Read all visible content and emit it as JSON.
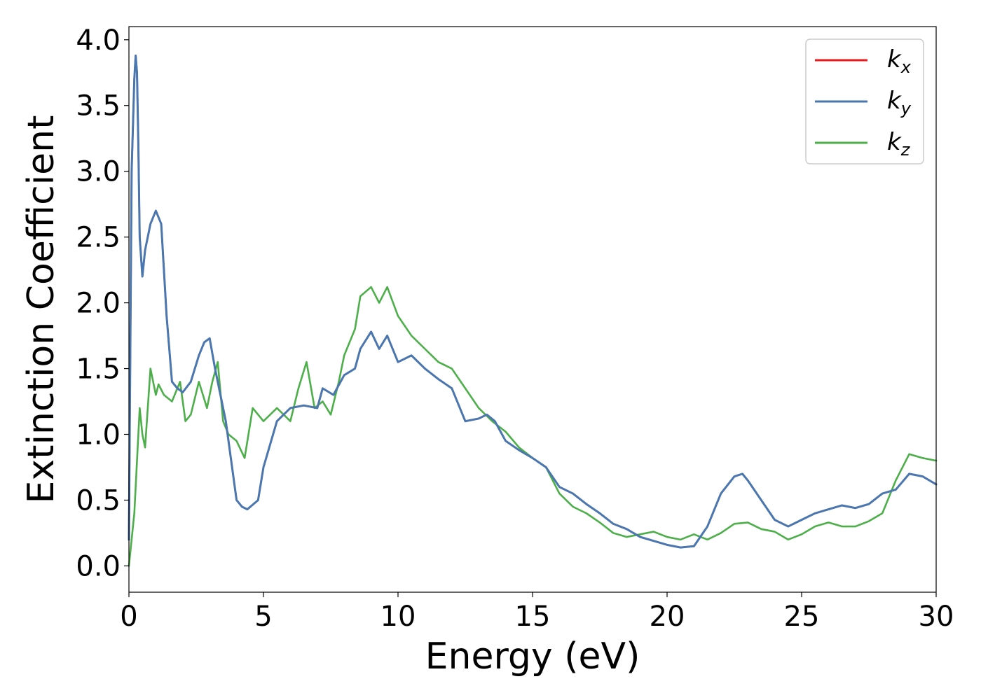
{
  "chart_data": {
    "type": "line",
    "title": "",
    "xlabel": "Energy (eV)",
    "ylabel": "Extinction Coefficient",
    "xlim": [
      0,
      30
    ],
    "ylim": [
      -0.2,
      4.1
    ],
    "xticks": [
      0,
      5,
      10,
      15,
      20,
      25,
      30
    ],
    "xtick_labels": [
      "0",
      "5",
      "10",
      "15",
      "20",
      "25",
      "30"
    ],
    "yticks": [
      0.0,
      0.5,
      1.0,
      1.5,
      2.0,
      2.5,
      3.0,
      3.5,
      4.0
    ],
    "ytick_labels": [
      "0.0",
      "0.5",
      "1.0",
      "1.5",
      "2.0",
      "2.5",
      "3.0",
      "3.5",
      "4.0"
    ],
    "grid": false,
    "legend": "top-right",
    "series": [
      {
        "name": "kx",
        "legend_base": "k",
        "legend_sub": "x",
        "color": "#e41a1c",
        "x": [
          0,
          0.1,
          0.2,
          0.25,
          0.3,
          0.35,
          0.4,
          0.5,
          0.6,
          0.8,
          1.0,
          1.2,
          1.4,
          1.6,
          1.8,
          2.0,
          2.3,
          2.6,
          2.8,
          3.0,
          3.2,
          3.6,
          3.8,
          4.0,
          4.2,
          4.4,
          4.8,
          5.0,
          5.5,
          6.0,
          6.5,
          7.0,
          7.2,
          7.6,
          8.0,
          8.4,
          8.6,
          9.0,
          9.3,
          9.6,
          10.0,
          10.5,
          11.0,
          11.5,
          12.0,
          12.5,
          13.0,
          13.3,
          13.6,
          14.0,
          14.5,
          15.0,
          15.5,
          16.0,
          16.5,
          17.0,
          17.5,
          18.0,
          18.5,
          19.0,
          19.5,
          20.0,
          20.5,
          21.0,
          21.5,
          22.0,
          22.5,
          22.8,
          23.0,
          23.5,
          24.0,
          24.5,
          25.0,
          25.5,
          26.0,
          26.5,
          27.0,
          27.5,
          28.0,
          28.5,
          29.0,
          29.5,
          30.0
        ],
        "y": [
          0.2,
          3.0,
          3.7,
          3.88,
          3.75,
          3.2,
          2.5,
          2.2,
          2.4,
          2.6,
          2.7,
          2.6,
          1.9,
          1.4,
          1.35,
          1.32,
          1.4,
          1.6,
          1.7,
          1.73,
          1.5,
          1.1,
          0.8,
          0.5,
          0.45,
          0.43,
          0.5,
          0.75,
          1.1,
          1.2,
          1.22,
          1.2,
          1.35,
          1.3,
          1.45,
          1.5,
          1.65,
          1.78,
          1.65,
          1.75,
          1.55,
          1.6,
          1.5,
          1.42,
          1.35,
          1.1,
          1.12,
          1.15,
          1.1,
          0.95,
          0.88,
          0.82,
          0.75,
          0.6,
          0.55,
          0.47,
          0.4,
          0.32,
          0.28,
          0.22,
          0.19,
          0.16,
          0.14,
          0.15,
          0.3,
          0.55,
          0.68,
          0.7,
          0.65,
          0.5,
          0.35,
          0.3,
          0.35,
          0.4,
          0.43,
          0.46,
          0.44,
          0.47,
          0.55,
          0.58,
          0.7,
          0.68,
          0.62
        ]
      },
      {
        "name": "ky",
        "legend_base": "k",
        "legend_sub": "y",
        "color": "#4a77b0",
        "x": [
          0,
          0.1,
          0.2,
          0.25,
          0.3,
          0.35,
          0.4,
          0.5,
          0.6,
          0.8,
          1.0,
          1.2,
          1.4,
          1.6,
          1.8,
          2.0,
          2.3,
          2.6,
          2.8,
          3.0,
          3.2,
          3.6,
          3.8,
          4.0,
          4.2,
          4.4,
          4.8,
          5.0,
          5.5,
          6.0,
          6.5,
          7.0,
          7.2,
          7.6,
          8.0,
          8.4,
          8.6,
          9.0,
          9.3,
          9.6,
          10.0,
          10.5,
          11.0,
          11.5,
          12.0,
          12.5,
          13.0,
          13.3,
          13.6,
          14.0,
          14.5,
          15.0,
          15.5,
          16.0,
          16.5,
          17.0,
          17.5,
          18.0,
          18.5,
          19.0,
          19.5,
          20.0,
          20.5,
          21.0,
          21.5,
          22.0,
          22.5,
          22.8,
          23.0,
          23.5,
          24.0,
          24.5,
          25.0,
          25.5,
          26.0,
          26.5,
          27.0,
          27.5,
          28.0,
          28.5,
          29.0,
          29.5,
          30.0
        ],
        "y": [
          0.2,
          3.0,
          3.7,
          3.88,
          3.75,
          3.2,
          2.5,
          2.2,
          2.4,
          2.6,
          2.7,
          2.6,
          1.9,
          1.4,
          1.35,
          1.32,
          1.4,
          1.6,
          1.7,
          1.73,
          1.5,
          1.1,
          0.8,
          0.5,
          0.45,
          0.43,
          0.5,
          0.75,
          1.1,
          1.2,
          1.22,
          1.2,
          1.35,
          1.3,
          1.45,
          1.5,
          1.65,
          1.78,
          1.65,
          1.75,
          1.55,
          1.6,
          1.5,
          1.42,
          1.35,
          1.1,
          1.12,
          1.15,
          1.1,
          0.95,
          0.88,
          0.82,
          0.75,
          0.6,
          0.55,
          0.47,
          0.4,
          0.32,
          0.28,
          0.22,
          0.19,
          0.16,
          0.14,
          0.15,
          0.3,
          0.55,
          0.68,
          0.7,
          0.65,
          0.5,
          0.35,
          0.3,
          0.35,
          0.4,
          0.43,
          0.46,
          0.44,
          0.47,
          0.55,
          0.58,
          0.7,
          0.68,
          0.62
        ]
      },
      {
        "name": "kz",
        "legend_base": "k",
        "legend_sub": "z",
        "color": "#4daf4a",
        "x": [
          0,
          0.2,
          0.4,
          0.5,
          0.6,
          0.7,
          0.8,
          1.0,
          1.1,
          1.3,
          1.6,
          1.9,
          2.1,
          2.3,
          2.6,
          2.9,
          3.1,
          3.3,
          3.5,
          3.7,
          4.0,
          4.3,
          4.6,
          4.8,
          5.0,
          5.5,
          6.0,
          6.3,
          6.6,
          6.9,
          7.2,
          7.5,
          7.8,
          8.0,
          8.4,
          8.6,
          9.0,
          9.3,
          9.6,
          10.0,
          10.5,
          11.0,
          11.5,
          12.0,
          12.5,
          13.0,
          13.5,
          14.0,
          14.5,
          15.0,
          15.5,
          16.0,
          16.5,
          17.0,
          17.5,
          18.0,
          18.5,
          19.0,
          19.5,
          20.0,
          20.5,
          21.0,
          21.5,
          22.0,
          22.5,
          23.0,
          23.5,
          24.0,
          24.5,
          25.0,
          25.5,
          26.0,
          26.5,
          27.0,
          27.5,
          28.0,
          28.5,
          29.0,
          29.5,
          30.0
        ],
        "y": [
          0.0,
          0.4,
          1.2,
          1.0,
          0.9,
          1.2,
          1.5,
          1.3,
          1.38,
          1.3,
          1.25,
          1.4,
          1.1,
          1.15,
          1.4,
          1.2,
          1.4,
          1.55,
          1.1,
          1.0,
          0.95,
          0.82,
          1.2,
          1.15,
          1.1,
          1.2,
          1.1,
          1.35,
          1.55,
          1.2,
          1.25,
          1.15,
          1.4,
          1.6,
          1.8,
          2.05,
          2.12,
          2.0,
          2.12,
          1.9,
          1.75,
          1.65,
          1.55,
          1.5,
          1.35,
          1.2,
          1.1,
          1.02,
          0.9,
          0.82,
          0.75,
          0.55,
          0.45,
          0.4,
          0.33,
          0.25,
          0.22,
          0.24,
          0.26,
          0.22,
          0.2,
          0.24,
          0.2,
          0.25,
          0.32,
          0.33,
          0.28,
          0.26,
          0.2,
          0.24,
          0.3,
          0.33,
          0.3,
          0.3,
          0.34,
          0.4,
          0.65,
          0.85,
          0.82,
          0.8
        ]
      }
    ]
  }
}
